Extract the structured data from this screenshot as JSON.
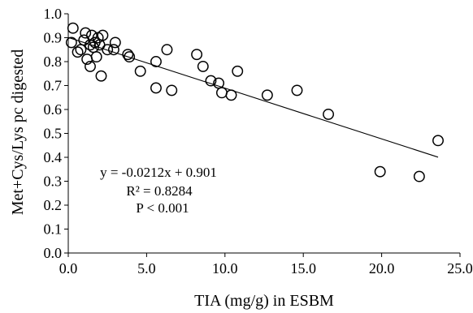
{
  "chart_data": {
    "type": "scatter",
    "xlabel": "TIA (mg/g) in ESBM",
    "ylabel": "Met+Cys/Lys pc digested",
    "xlim": [
      0,
      25
    ],
    "ylim": [
      0,
      1
    ],
    "x_ticks": [
      "0.0",
      "5.0",
      "10.0",
      "15.0",
      "20.0",
      "25.0"
    ],
    "y_ticks": [
      "0.0",
      "0.1",
      "0.2",
      "0.3",
      "0.4",
      "0.5",
      "0.6",
      "0.7",
      "0.8",
      "0.9",
      "1.0"
    ],
    "grid": false,
    "marker": "open-circle",
    "points": [
      {
        "x": 0.3,
        "y": 0.94
      },
      {
        "x": 0.2,
        "y": 0.88
      },
      {
        "x": 0.6,
        "y": 0.84
      },
      {
        "x": 0.8,
        "y": 0.85
      },
      {
        "x": 1.0,
        "y": 0.89
      },
      {
        "x": 1.1,
        "y": 0.92
      },
      {
        "x": 1.2,
        "y": 0.81
      },
      {
        "x": 1.4,
        "y": 0.87
      },
      {
        "x": 1.4,
        "y": 0.78
      },
      {
        "x": 1.5,
        "y": 0.91
      },
      {
        "x": 1.6,
        "y": 0.86
      },
      {
        "x": 1.7,
        "y": 0.88
      },
      {
        "x": 1.8,
        "y": 0.82
      },
      {
        "x": 1.9,
        "y": 0.9
      },
      {
        "x": 2.0,
        "y": 0.87
      },
      {
        "x": 2.1,
        "y": 0.74
      },
      {
        "x": 2.2,
        "y": 0.91
      },
      {
        "x": 2.5,
        "y": 0.85
      },
      {
        "x": 3.0,
        "y": 0.88
      },
      {
        "x": 2.9,
        "y": 0.85
      },
      {
        "x": 3.8,
        "y": 0.83
      },
      {
        "x": 3.9,
        "y": 0.82
      },
      {
        "x": 4.6,
        "y": 0.76
      },
      {
        "x": 5.6,
        "y": 0.69
      },
      {
        "x": 5.6,
        "y": 0.8
      },
      {
        "x": 6.3,
        "y": 0.85
      },
      {
        "x": 6.6,
        "y": 0.68
      },
      {
        "x": 8.2,
        "y": 0.83
      },
      {
        "x": 8.6,
        "y": 0.78
      },
      {
        "x": 9.1,
        "y": 0.72
      },
      {
        "x": 9.6,
        "y": 0.71
      },
      {
        "x": 9.8,
        "y": 0.67
      },
      {
        "x": 10.4,
        "y": 0.66
      },
      {
        "x": 10.8,
        "y": 0.76
      },
      {
        "x": 12.7,
        "y": 0.66
      },
      {
        "x": 14.6,
        "y": 0.68
      },
      {
        "x": 16.6,
        "y": 0.58
      },
      {
        "x": 19.9,
        "y": 0.34
      },
      {
        "x": 22.4,
        "y": 0.32
      },
      {
        "x": 23.6,
        "y": 0.47
      }
    ],
    "trendline": {
      "type": "linear",
      "slope": -0.0212,
      "intercept": 0.901,
      "x_range": [
        0,
        23.6
      ]
    },
    "annotations": [
      "y = -0.0212x + 0.901",
      "R² = 0.8284",
      "P < 0.001"
    ]
  }
}
